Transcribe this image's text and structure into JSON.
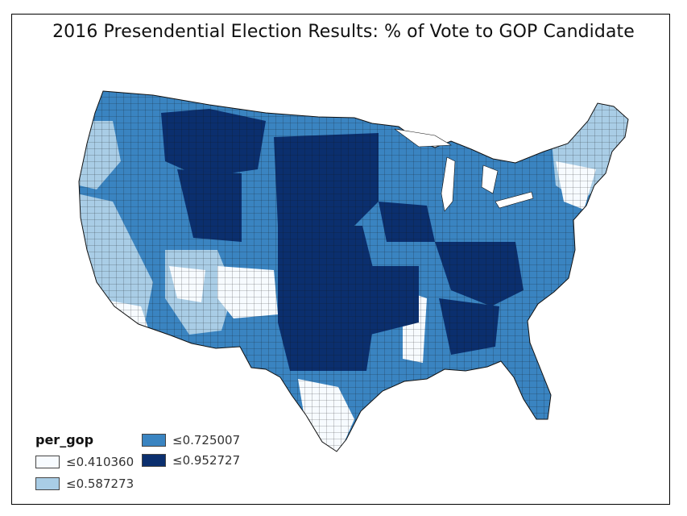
{
  "title": "2016 Presendential Election Results: % of Vote to GOP Candidate",
  "legend": {
    "title": "per_gop",
    "items": [
      {
        "label": "≤0.410360",
        "color": "#f7fbff"
      },
      {
        "label": "≤0.587273",
        "color": "#a9cde6"
      },
      {
        "label": "≤0.725007",
        "color": "#3a84c1"
      },
      {
        "label": "≤0.952727",
        "color": "#0b2f6e"
      }
    ]
  },
  "colors": {
    "border": "#1a1a1a",
    "frame": "#000000"
  }
}
